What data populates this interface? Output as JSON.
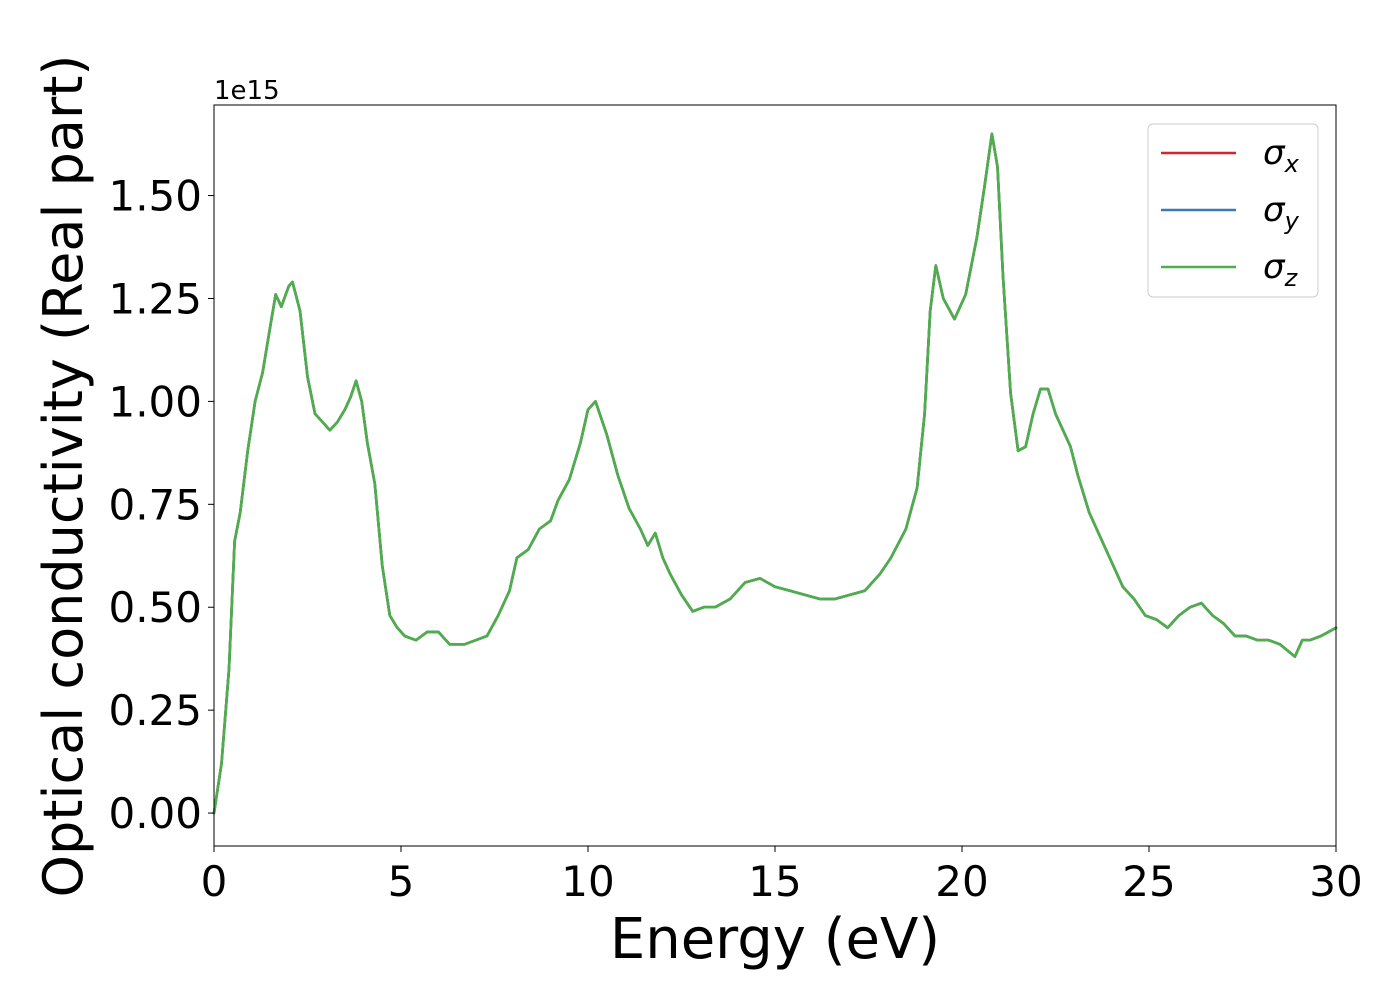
{
  "chart_data": {
    "type": "line",
    "xlabel": "Energy (eV)",
    "ylabel": "Optical conductivity (Real part)",
    "y_scale_label": "1e15",
    "y_scale_factor": 1000000000000000.0,
    "xlim": [
      0,
      30
    ],
    "ylim": [
      -0.08,
      1.72
    ],
    "x_ticks": [
      0,
      5,
      10,
      15,
      20,
      25,
      30
    ],
    "x_tick_labels": [
      "0",
      "5",
      "10",
      "15",
      "20",
      "25",
      "30"
    ],
    "y_ticks": [
      0.0,
      0.25,
      0.5,
      0.75,
      1.0,
      1.25,
      1.5
    ],
    "y_tick_labels": [
      "0.00",
      "0.25",
      "0.50",
      "0.75",
      "1.00",
      "1.25",
      "1.50"
    ],
    "grid": false,
    "legend_position": "top-right",
    "x": [
      0.0,
      0.2,
      0.4,
      0.55,
      0.7,
      0.9,
      1.1,
      1.3,
      1.5,
      1.65,
      1.8,
      2.0,
      2.1,
      2.3,
      2.5,
      2.7,
      2.9,
      3.1,
      3.3,
      3.5,
      3.65,
      3.8,
      3.95,
      4.1,
      4.3,
      4.5,
      4.7,
      4.9,
      5.1,
      5.4,
      5.7,
      6.0,
      6.3,
      6.7,
      7.0,
      7.3,
      7.6,
      7.9,
      8.1,
      8.4,
      8.7,
      9.0,
      9.2,
      9.5,
      9.8,
      10.0,
      10.2,
      10.5,
      10.8,
      11.1,
      11.4,
      11.6,
      11.8,
      12.0,
      12.2,
      12.5,
      12.8,
      13.1,
      13.4,
      13.8,
      14.2,
      14.6,
      15.0,
      15.4,
      15.8,
      16.2,
      16.6,
      17.0,
      17.4,
      17.8,
      18.1,
      18.5,
      18.8,
      19.0,
      19.15,
      19.3,
      19.5,
      19.8,
      20.1,
      20.4,
      20.6,
      20.8,
      20.95,
      21.1,
      21.3,
      21.5,
      21.7,
      21.9,
      22.1,
      22.3,
      22.5,
      22.7,
      22.9,
      23.1,
      23.4,
      23.7,
      24.0,
      24.3,
      24.6,
      24.9,
      25.2,
      25.5,
      25.8,
      26.1,
      26.4,
      26.7,
      27.0,
      27.3,
      27.6,
      27.9,
      28.2,
      28.5,
      28.9,
      29.1,
      29.3,
      29.6,
      30.0
    ],
    "series": [
      {
        "name": "σx",
        "name_base": "σ",
        "name_sub": "x",
        "color": "#d62728",
        "values": [
          0.0,
          0.12,
          0.35,
          0.66,
          0.73,
          0.88,
          1.0,
          1.07,
          1.18,
          1.26,
          1.23,
          1.28,
          1.29,
          1.22,
          1.06,
          0.97,
          0.95,
          0.93,
          0.95,
          0.98,
          1.01,
          1.05,
          1.0,
          0.9,
          0.8,
          0.6,
          0.48,
          0.45,
          0.43,
          0.42,
          0.44,
          0.44,
          0.41,
          0.41,
          0.42,
          0.43,
          0.48,
          0.54,
          0.62,
          0.64,
          0.69,
          0.71,
          0.76,
          0.81,
          0.9,
          0.98,
          1.0,
          0.92,
          0.82,
          0.74,
          0.69,
          0.65,
          0.68,
          0.62,
          0.58,
          0.53,
          0.49,
          0.5,
          0.5,
          0.52,
          0.56,
          0.57,
          0.55,
          0.54,
          0.53,
          0.52,
          0.52,
          0.53,
          0.54,
          0.58,
          0.62,
          0.69,
          0.79,
          0.97,
          1.22,
          1.33,
          1.25,
          1.2,
          1.26,
          1.4,
          1.52,
          1.65,
          1.57,
          1.3,
          1.02,
          0.88,
          0.89,
          0.97,
          1.03,
          1.03,
          0.97,
          0.93,
          0.89,
          0.82,
          0.73,
          0.67,
          0.61,
          0.55,
          0.52,
          0.48,
          0.47,
          0.45,
          0.48,
          0.5,
          0.51,
          0.48,
          0.46,
          0.43,
          0.43,
          0.42,
          0.42,
          0.41,
          0.38,
          0.42,
          0.42,
          0.43,
          0.45
        ]
      },
      {
        "name": "σy",
        "name_base": "σ",
        "name_sub": "y",
        "color": "#3d79b3",
        "values": [
          0.0,
          0.12,
          0.35,
          0.66,
          0.73,
          0.88,
          1.0,
          1.07,
          1.18,
          1.26,
          1.23,
          1.28,
          1.29,
          1.22,
          1.06,
          0.97,
          0.95,
          0.93,
          0.95,
          0.98,
          1.01,
          1.05,
          1.0,
          0.9,
          0.8,
          0.6,
          0.48,
          0.45,
          0.43,
          0.42,
          0.44,
          0.44,
          0.41,
          0.41,
          0.42,
          0.43,
          0.48,
          0.54,
          0.62,
          0.64,
          0.69,
          0.71,
          0.76,
          0.81,
          0.9,
          0.98,
          1.0,
          0.92,
          0.82,
          0.74,
          0.69,
          0.65,
          0.68,
          0.62,
          0.58,
          0.53,
          0.49,
          0.5,
          0.5,
          0.52,
          0.56,
          0.57,
          0.55,
          0.54,
          0.53,
          0.52,
          0.52,
          0.53,
          0.54,
          0.58,
          0.62,
          0.69,
          0.79,
          0.97,
          1.22,
          1.33,
          1.25,
          1.2,
          1.26,
          1.4,
          1.52,
          1.65,
          1.57,
          1.3,
          1.02,
          0.88,
          0.89,
          0.97,
          1.03,
          1.03,
          0.97,
          0.93,
          0.89,
          0.82,
          0.73,
          0.67,
          0.61,
          0.55,
          0.52,
          0.48,
          0.47,
          0.45,
          0.48,
          0.5,
          0.51,
          0.48,
          0.46,
          0.43,
          0.43,
          0.42,
          0.42,
          0.41,
          0.38,
          0.42,
          0.42,
          0.43,
          0.45
        ]
      },
      {
        "name": "σz",
        "name_base": "σ",
        "name_sub": "z",
        "color": "#4daf4a",
        "values": [
          0.0,
          0.12,
          0.35,
          0.66,
          0.73,
          0.88,
          1.0,
          1.07,
          1.18,
          1.26,
          1.23,
          1.28,
          1.29,
          1.22,
          1.06,
          0.97,
          0.95,
          0.93,
          0.95,
          0.98,
          1.01,
          1.05,
          1.0,
          0.9,
          0.8,
          0.6,
          0.48,
          0.45,
          0.43,
          0.42,
          0.44,
          0.44,
          0.41,
          0.41,
          0.42,
          0.43,
          0.48,
          0.54,
          0.62,
          0.64,
          0.69,
          0.71,
          0.76,
          0.81,
          0.9,
          0.98,
          1.0,
          0.92,
          0.82,
          0.74,
          0.69,
          0.65,
          0.68,
          0.62,
          0.58,
          0.53,
          0.49,
          0.5,
          0.5,
          0.52,
          0.56,
          0.57,
          0.55,
          0.54,
          0.53,
          0.52,
          0.52,
          0.53,
          0.54,
          0.58,
          0.62,
          0.69,
          0.79,
          0.97,
          1.22,
          1.33,
          1.25,
          1.2,
          1.26,
          1.4,
          1.52,
          1.65,
          1.57,
          1.3,
          1.02,
          0.88,
          0.89,
          0.97,
          1.03,
          1.03,
          0.97,
          0.93,
          0.89,
          0.82,
          0.73,
          0.67,
          0.61,
          0.55,
          0.52,
          0.48,
          0.47,
          0.45,
          0.48,
          0.5,
          0.51,
          0.48,
          0.46,
          0.43,
          0.43,
          0.42,
          0.42,
          0.41,
          0.38,
          0.42,
          0.42,
          0.43,
          0.45
        ]
      }
    ]
  }
}
